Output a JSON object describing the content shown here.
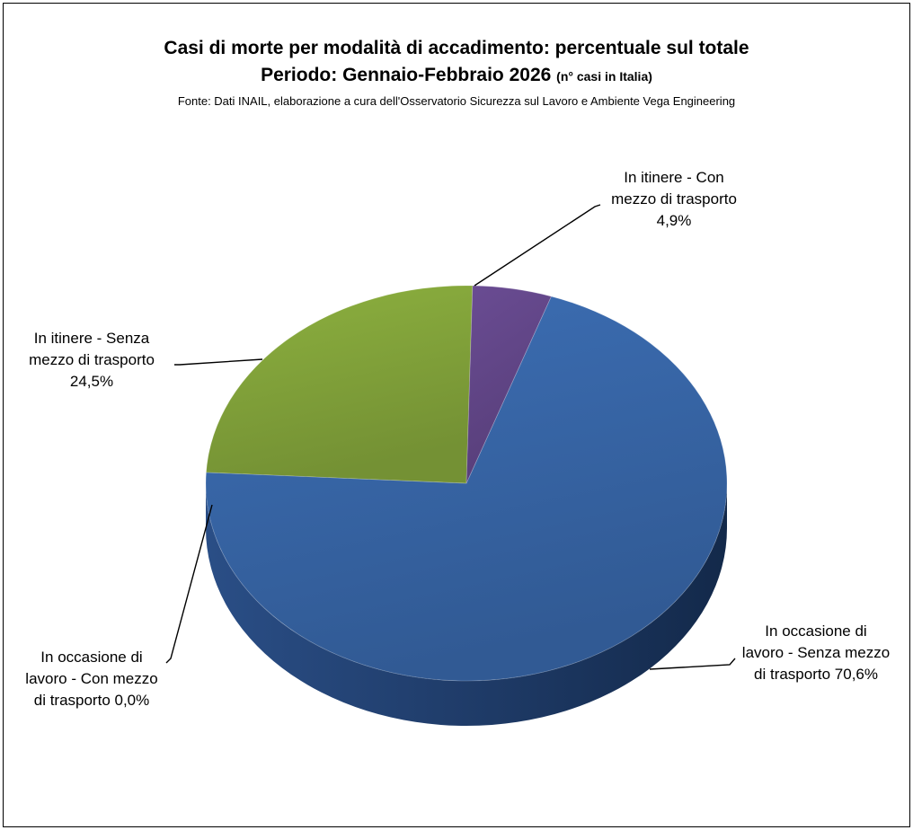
{
  "chart_data": {
    "type": "pie",
    "title": "Casi di morte per modalità di accadimento: percentuale sul totale",
    "subtitle": "Periodo: Gennaio-Febbraio 2026",
    "subtitle_note": "(n° casi in Italia)",
    "source": "Fonte: Dati INAIL, elaborazione a cura dell'Osservatorio Sicurezza sul Lavoro e Ambiente Vega Engineering",
    "categories": [
      "In occasione di lavoro - Senza mezzo di trasporto",
      "In occasione di lavoro - Con mezzo di trasporto",
      "In itinere - Senza mezzo di trasporto",
      "In itinere - Con mezzo di trasporto"
    ],
    "values": [
      70.6,
      0.0,
      24.5,
      4.9
    ],
    "unit": "%",
    "labels": [
      {
        "lines": [
          "In occasione di",
          "lavoro - Senza mezzo",
          "di trasporto 70,6%"
        ]
      },
      {
        "lines": [
          "In occasione di",
          "lavoro - Con mezzo",
          "di trasporto 0,0%"
        ]
      },
      {
        "lines": [
          "In itinere - Senza",
          "mezzo di trasporto",
          "24,5%"
        ]
      },
      {
        "lines": [
          "In itinere - Con",
          "mezzo di trasporto",
          "4,9%"
        ]
      }
    ],
    "colors": [
      "#3C6EB4",
      "#C0504D",
      "#8DB13F",
      "#6A4C93"
    ],
    "style": "3D pie",
    "legend": "none"
  }
}
